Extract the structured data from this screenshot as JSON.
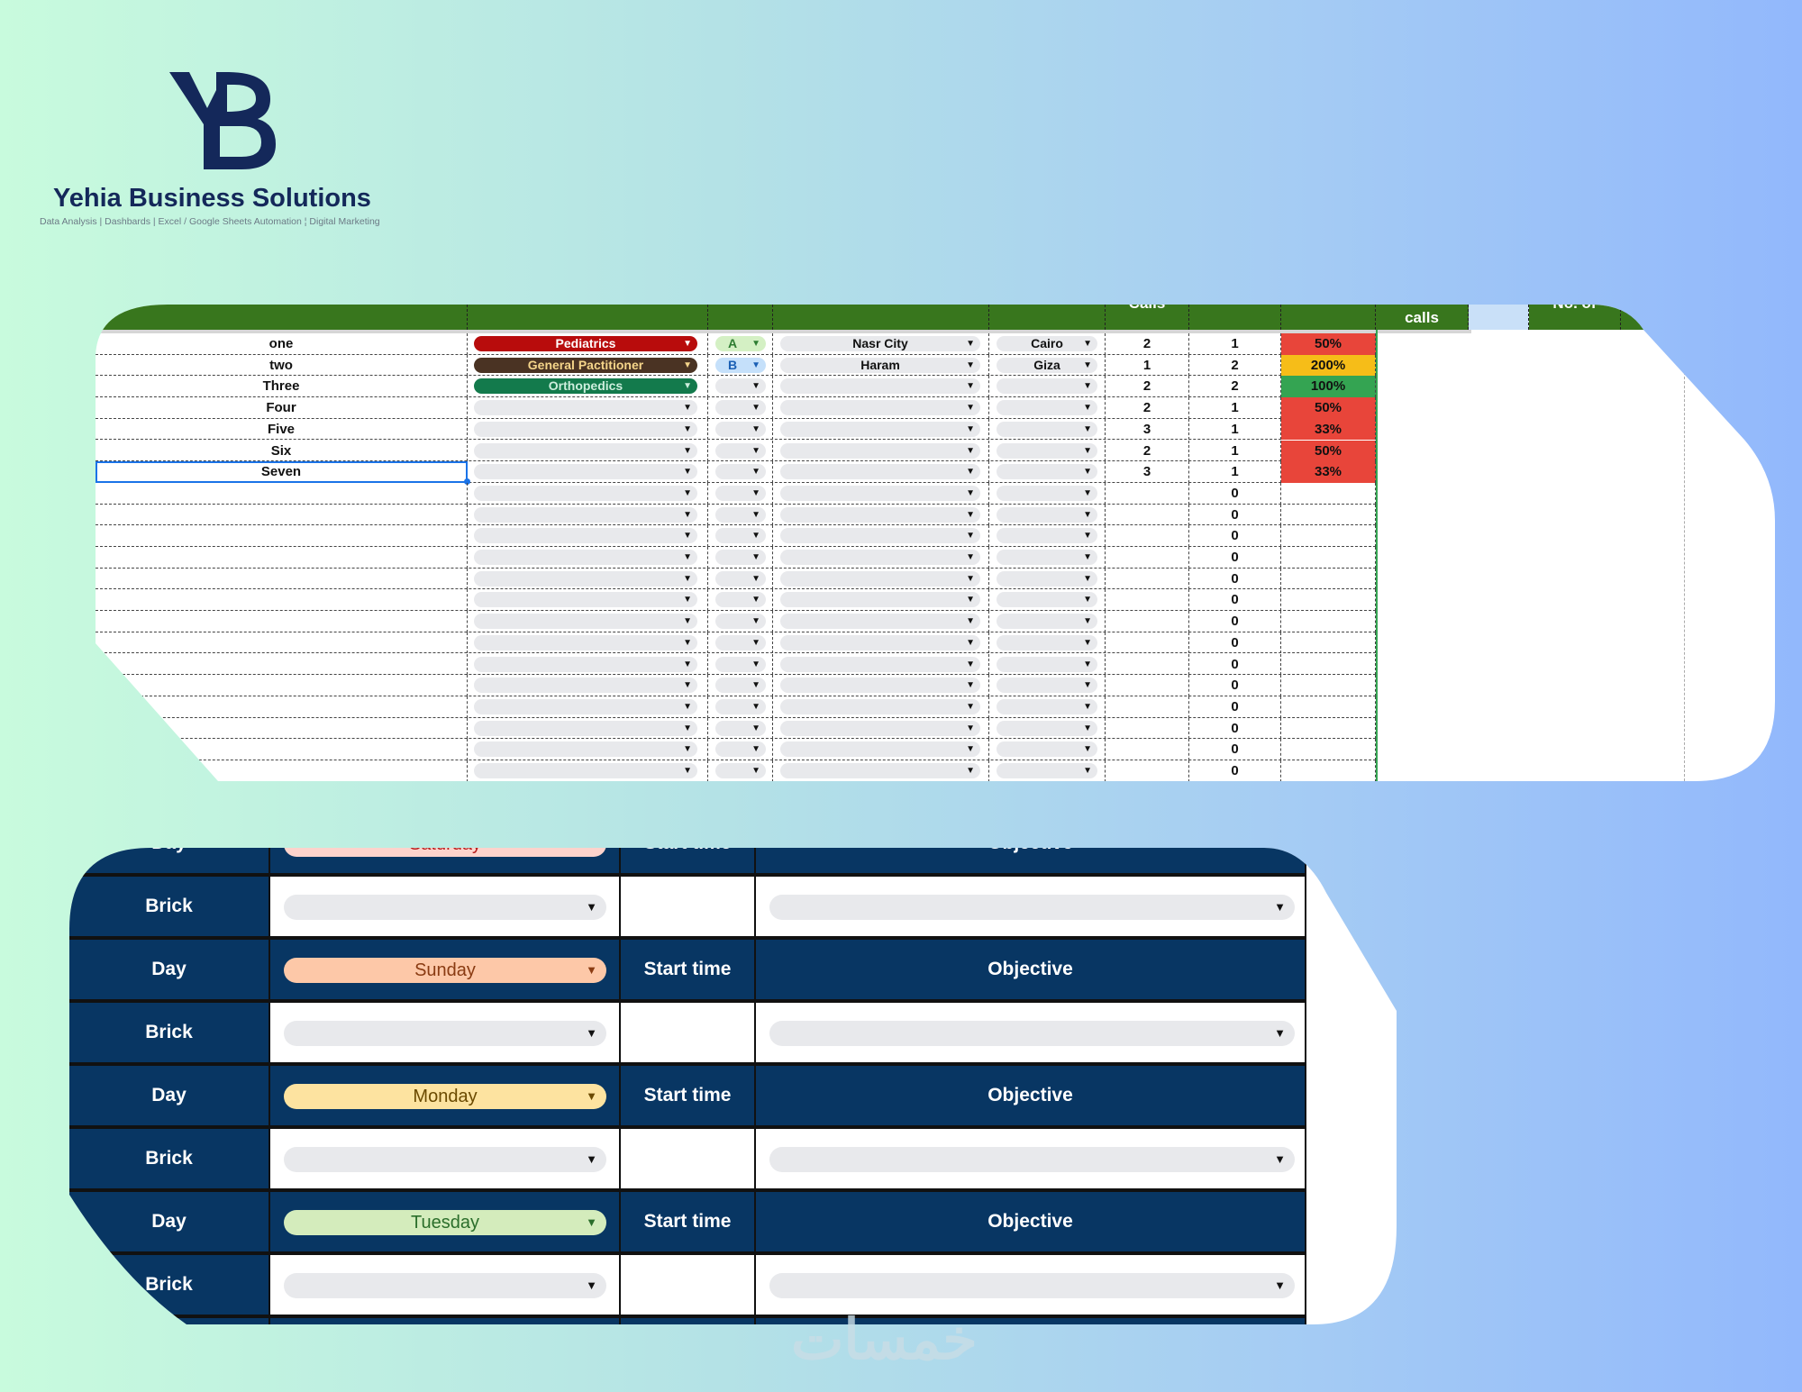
{
  "brand": {
    "logo_letters": "YB",
    "name": "Yehia Business Solutions",
    "tagline": "Data Analysis | Dashbards | Excel / Google Sheets Automation ¦ Digital Marketing",
    "color": "#14285a"
  },
  "top_table": {
    "headers": {
      "calls_a": "Calls",
      "calls_b": "calls",
      "last": "No. of"
    },
    "rows": [
      {
        "name": "one",
        "specialty": "Pediatrics",
        "class": "A",
        "area": "Nasr City",
        "city": "Cairo",
        "c1": "2",
        "c2": "1",
        "pct": "50%"
      },
      {
        "name": "two",
        "specialty": "General Pactitioner",
        "class": "B",
        "area": "Haram",
        "city": "Giza",
        "c1": "1",
        "c2": "2",
        "pct": "200%"
      },
      {
        "name": "Three",
        "specialty": "Orthopedics",
        "class": "",
        "area": "",
        "city": "",
        "c1": "2",
        "c2": "2",
        "pct": "100%"
      },
      {
        "name": "Four",
        "specialty": "",
        "class": "",
        "area": "",
        "city": "",
        "c1": "2",
        "c2": "1",
        "pct": "50%"
      },
      {
        "name": "Five",
        "specialty": "",
        "class": "",
        "area": "",
        "city": "",
        "c1": "3",
        "c2": "1",
        "pct": "33%"
      },
      {
        "name": "Six",
        "specialty": "",
        "class": "",
        "area": "",
        "city": "",
        "c1": "2",
        "c2": "1",
        "pct": "50%"
      },
      {
        "name": "Seven",
        "specialty": "",
        "class": "",
        "area": "",
        "city": "",
        "c1": "3",
        "c2": "1",
        "pct": "33%"
      },
      {
        "name": "",
        "specialty": "",
        "class": "",
        "area": "",
        "city": "",
        "c1": "",
        "c2": "0",
        "pct": ""
      },
      {
        "name": "",
        "specialty": "",
        "class": "",
        "area": "",
        "city": "",
        "c1": "",
        "c2": "0",
        "pct": ""
      },
      {
        "name": "",
        "specialty": "",
        "class": "",
        "area": "",
        "city": "",
        "c1": "",
        "c2": "0",
        "pct": ""
      },
      {
        "name": "",
        "specialty": "",
        "class": "",
        "area": "",
        "city": "",
        "c1": "",
        "c2": "0",
        "pct": ""
      },
      {
        "name": "",
        "specialty": "",
        "class": "",
        "area": "",
        "city": "",
        "c1": "",
        "c2": "0",
        "pct": ""
      },
      {
        "name": "",
        "specialty": "",
        "class": "",
        "area": "",
        "city": "",
        "c1": "",
        "c2": "0",
        "pct": ""
      },
      {
        "name": "",
        "specialty": "",
        "class": "",
        "area": "",
        "city": "",
        "c1": "",
        "c2": "0",
        "pct": ""
      },
      {
        "name": "",
        "specialty": "",
        "class": "",
        "area": "",
        "city": "",
        "c1": "",
        "c2": "0",
        "pct": ""
      },
      {
        "name": "",
        "specialty": "",
        "class": "",
        "area": "",
        "city": "",
        "c1": "",
        "c2": "0",
        "pct": ""
      },
      {
        "name": "",
        "specialty": "",
        "class": "",
        "area": "",
        "city": "",
        "c1": "",
        "c2": "0",
        "pct": ""
      },
      {
        "name": "",
        "specialty": "",
        "class": "",
        "area": "",
        "city": "",
        "c1": "",
        "c2": "0",
        "pct": ""
      },
      {
        "name": "",
        "specialty": "",
        "class": "",
        "area": "",
        "city": "",
        "c1": "",
        "c2": "0",
        "pct": ""
      },
      {
        "name": "",
        "specialty": "",
        "class": "",
        "area": "",
        "city": "",
        "c1": "",
        "c2": "0",
        "pct": ""
      },
      {
        "name": "",
        "specialty": "",
        "class": "",
        "area": "",
        "city": "",
        "c1": "",
        "c2": "0",
        "pct": ""
      }
    ],
    "specialty_colors": {
      "Pediatrics": {
        "bg": "#b80c0c",
        "fg": "#ffffff"
      },
      "General Pactitioner": {
        "bg": "#4a3323",
        "fg": "#f5d58a"
      },
      "Orthopedics": {
        "bg": "#137a4c",
        "fg": "#cdeedd"
      }
    },
    "class_colors": {
      "A": {
        "bg": "#d4f0c4",
        "fg": "#2e7d32"
      },
      "B": {
        "bg": "#c5e0fa",
        "fg": "#1a5fb4"
      }
    },
    "pct_colors": {
      "50%": "#e8453a",
      "33%": "#e8453a",
      "200%": "#f6bd18",
      "100%": "#34a452"
    },
    "header_color": "#38761d"
  },
  "schedule": {
    "day_label": "Day",
    "brick_label": "Brick",
    "start_label": "Start time",
    "objective_label": "Objective",
    "days": [
      {
        "name": "Saturday",
        "bg": "#fdd3cc",
        "fg": "#b71c1c"
      },
      {
        "name": "Sunday",
        "bg": "#fdc8a8",
        "fg": "#8a3b12"
      },
      {
        "name": "Monday",
        "bg": "#fde3a0",
        "fg": "#6b4a00"
      },
      {
        "name": "Tuesday",
        "bg": "#d4ecbc",
        "fg": "#2b6e2b"
      }
    ],
    "header_color": "#083663"
  },
  "watermark": "خمسات"
}
